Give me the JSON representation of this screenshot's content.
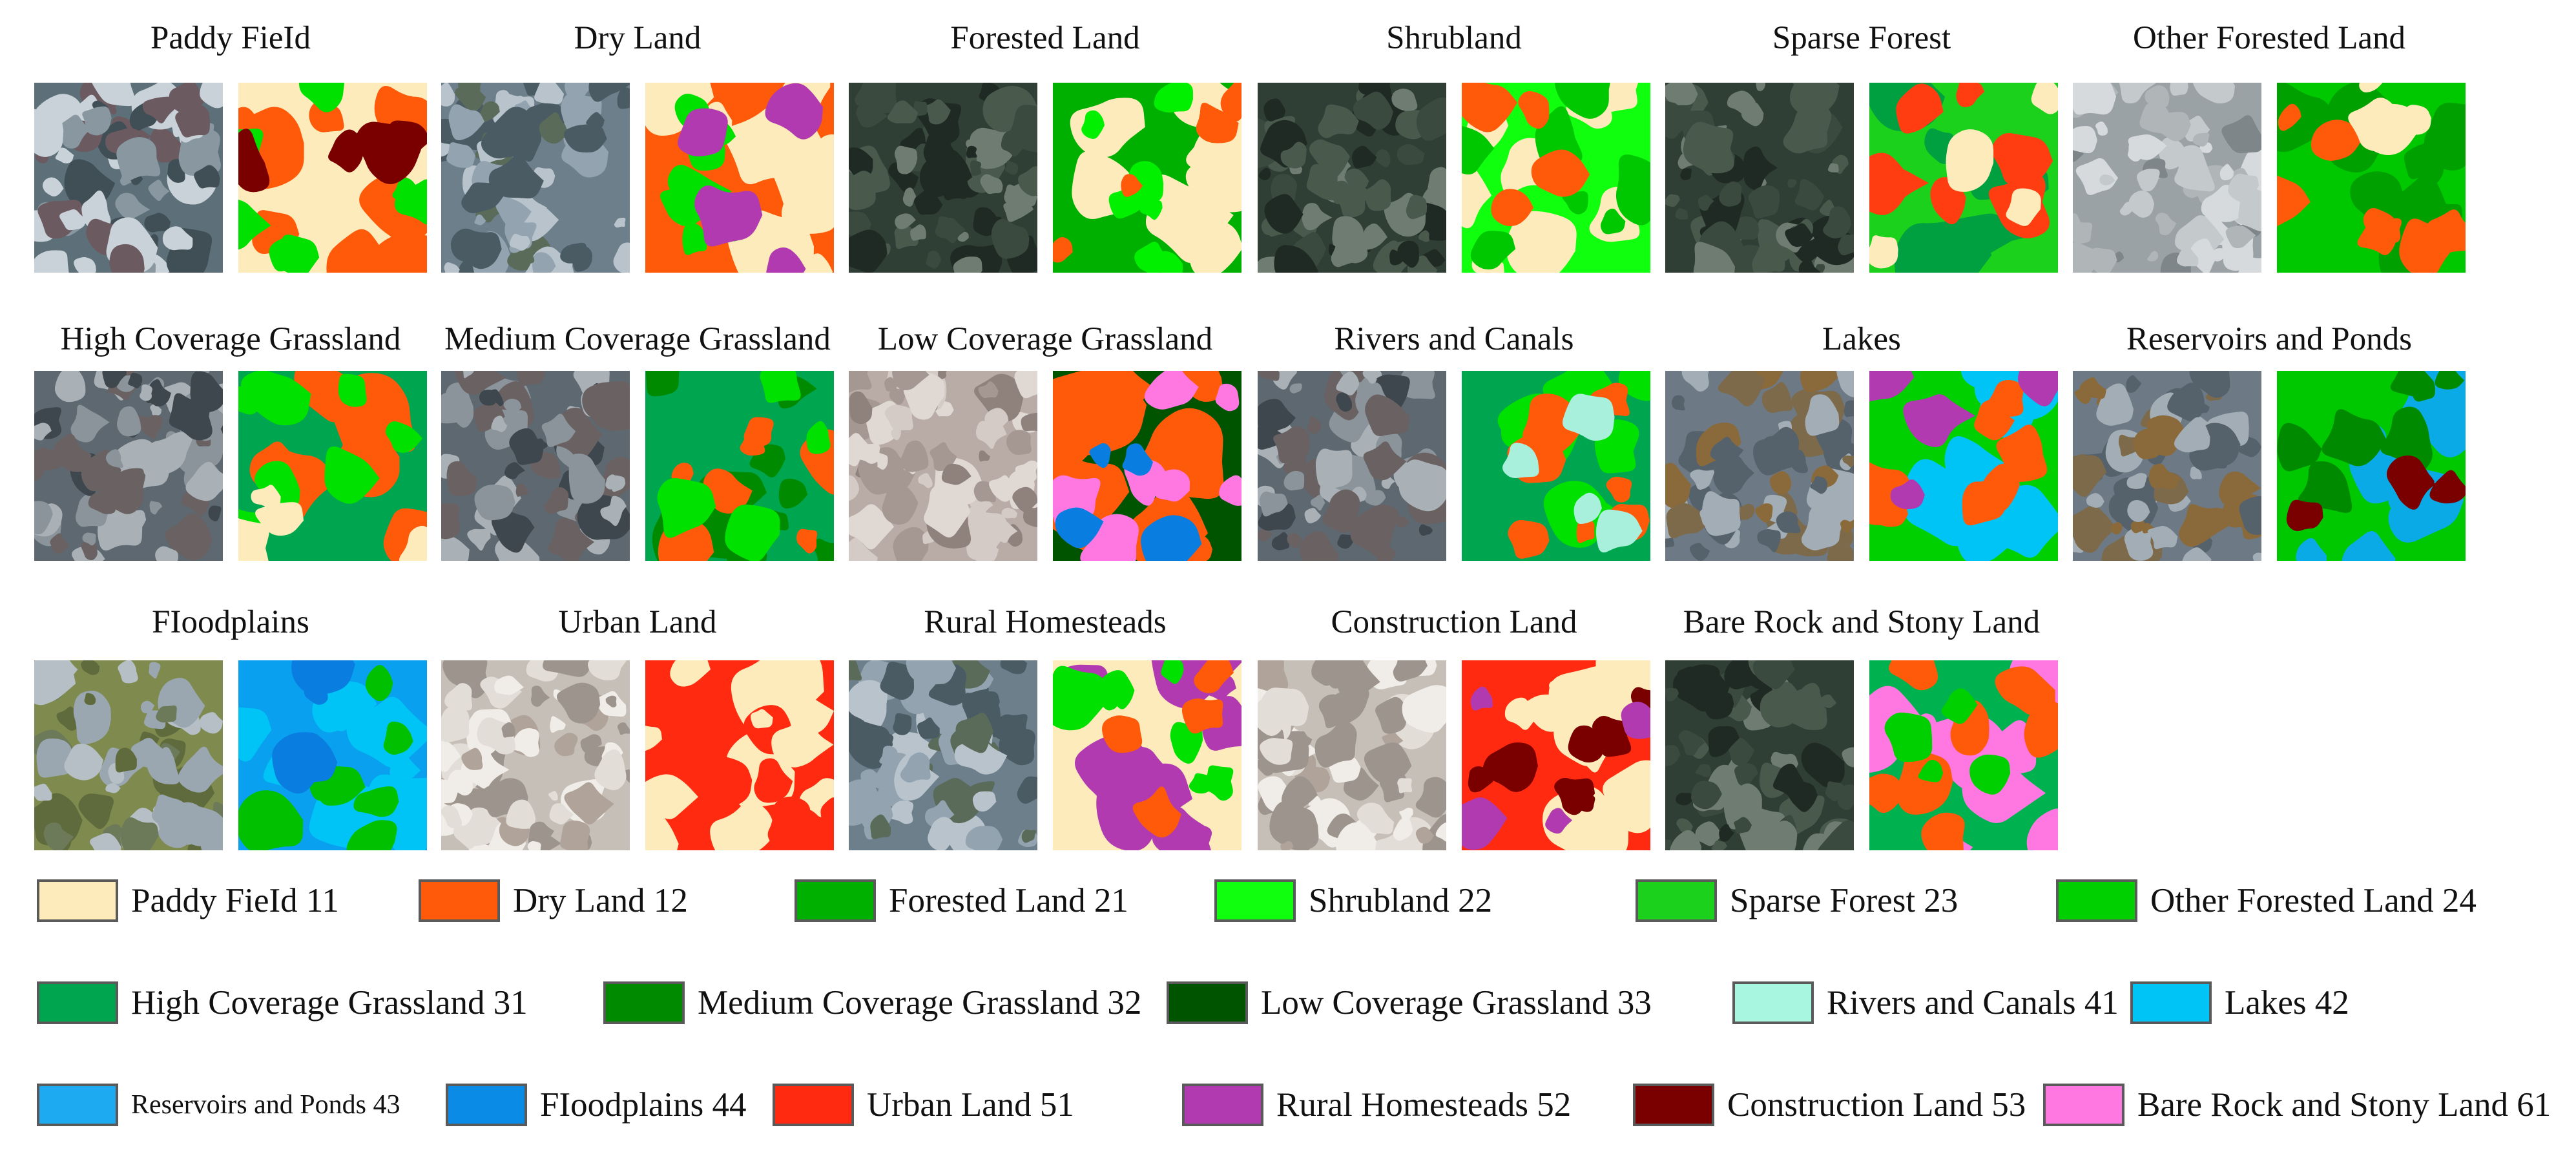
{
  "samples": [
    {
      "title": "Paddy FieId",
      "satellite": "sat-urban-grey",
      "label_map": [
        "#FDEBBB",
        "#FF5A0A",
        "#00E100",
        "#7A0000"
      ],
      "row": 0,
      "col": 0
    },
    {
      "title": "Dry Land",
      "satellite": "sat-mixed-grey",
      "label_map": [
        "#FF5A0A",
        "#FDEBBB",
        "#00E100",
        "#B23AB0"
      ],
      "row": 0,
      "col": 1
    },
    {
      "title": "Forested Land",
      "satellite": "sat-mountain-dark",
      "label_map": [
        "#00B000",
        "#FDEBBB",
        "#00F000",
        "#FF5A0A"
      ],
      "row": 0,
      "col": 2
    },
    {
      "title": "Shrubland",
      "satellite": "sat-mountain-dark",
      "label_map": [
        "#0FFF0F",
        "#FDEBBB",
        "#00C800",
        "#FF5A0A"
      ],
      "row": 0,
      "col": 3
    },
    {
      "title": "Sparse Forest",
      "satellite": "sat-mountain-dark",
      "label_map": [
        "#1CD11C",
        "#00A040",
        "#FF3D10",
        "#FDEBBB"
      ],
      "row": 0,
      "col": 4
    },
    {
      "title": "Other Forested Land",
      "satellite": "sat-blur-grey",
      "label_map": [
        "#00C800",
        "#00A000",
        "#FF5A0A",
        "#FDEBBB"
      ],
      "row": 0,
      "col": 5
    },
    {
      "title": "High Coverage Grassland",
      "satellite": "sat-mountain-grey",
      "label_map": [
        "#00A550",
        "#FF5A0A",
        "#00E100",
        "#FDEBBB"
      ],
      "row": 1,
      "col": 0
    },
    {
      "title": "Medium Coverage Grassland",
      "satellite": "sat-mountain-grey",
      "label_map": [
        "#00A550",
        "#008A00",
        "#FF5A0A",
        "#00E100"
      ],
      "row": 1,
      "col": 1
    },
    {
      "title": "Low Coverage Grassland",
      "satellite": "sat-bare-light",
      "label_map": [
        "#005400",
        "#FF5A0A",
        "#FF78E1",
        "#0A7DE0"
      ],
      "row": 1,
      "col": 2
    },
    {
      "title": "Rivers and Canals",
      "satellite": "sat-mountain-grey",
      "label_map": [
        "#00A550",
        "#00E100",
        "#FF5A0A",
        "#A8F0DC"
      ],
      "row": 1,
      "col": 3
    },
    {
      "title": "Lakes",
      "satellite": "sat-lake-brown",
      "label_map": [
        "#00D000",
        "#00C4F5",
        "#FF5A0A",
        "#B23AB0"
      ],
      "row": 1,
      "col": 4
    },
    {
      "title": "Reservoirs and Ponds",
      "satellite": "sat-lake-brown",
      "label_map": [
        "#00C800",
        "#0AAAE6",
        "#008A00",
        "#7A0000"
      ],
      "row": 1,
      "col": 5
    },
    {
      "title": "FIoodplains",
      "satellite": "sat-wet-olive",
      "label_map": [
        "#0AA0F0",
        "#00C4F5",
        "#00C000",
        "#0A7DE0"
      ],
      "row": 2,
      "col": 0
    },
    {
      "title": "Urban Land",
      "satellite": "sat-city-light",
      "label_map": [
        "#FF2A10",
        "#FDEBBB",
        "#FF2A10",
        "#FDEBBB"
      ],
      "row": 2,
      "col": 1
    },
    {
      "title": "Rural Homesteads",
      "satellite": "sat-mixed-grey",
      "label_map": [
        "#FDEBBB",
        "#B23AB0",
        "#00E100",
        "#FF5A0A"
      ],
      "row": 2,
      "col": 2
    },
    {
      "title": "Construction Land",
      "satellite": "sat-city-light",
      "label_map": [
        "#FF2A10",
        "#FDEBBB",
        "#7A0000",
        "#B23AB0"
      ],
      "row": 2,
      "col": 3
    },
    {
      "title": "Bare Rock and Stony Land",
      "satellite": "sat-mountain-dark",
      "label_map": [
        "#00B24F",
        "#FF78E1",
        "#FF5A0A",
        "#00D000"
      ],
      "row": 2,
      "col": 4
    }
  ],
  "legend": [
    {
      "label": "Paddy FieId 11",
      "color": "#FDEBBB"
    },
    {
      "label": "Dry Land 12",
      "color": "#FF5A0A"
    },
    {
      "label": "Forested Land 21",
      "color": "#00B000"
    },
    {
      "label": "Shrubland 22",
      "color": "#0FFF0F"
    },
    {
      "label": "Sparse Forest 23",
      "color": "#1CD11C"
    },
    {
      "label": "Other Forested Land 24",
      "color": "#00D000"
    },
    {
      "label": "High Coverage Grassland 31",
      "color": "#00A550"
    },
    {
      "label": "Medium Coverage Grassland 32",
      "color": "#008A00"
    },
    {
      "label": "Low Coverage Grassland 33",
      "color": "#005400"
    },
    {
      "label": "Rivers and Canals 41",
      "color": "#A8F5E0"
    },
    {
      "label": "Lakes 42",
      "color": "#00C4F5"
    },
    {
      "label": "Reservoirs and Ponds 43",
      "color": "#1EAAF0"
    },
    {
      "label": "FIoodplains 44",
      "color": "#0A8CE6"
    },
    {
      "label": "Urban Land 51",
      "color": "#FF2A10"
    },
    {
      "label": "Rural Homesteads 52",
      "color": "#B23AB0"
    },
    {
      "label": "Construction Land 53",
      "color": "#7A0000"
    },
    {
      "label": "Bare Rock and Stony Land 61",
      "color": "#FF78E1"
    }
  ]
}
